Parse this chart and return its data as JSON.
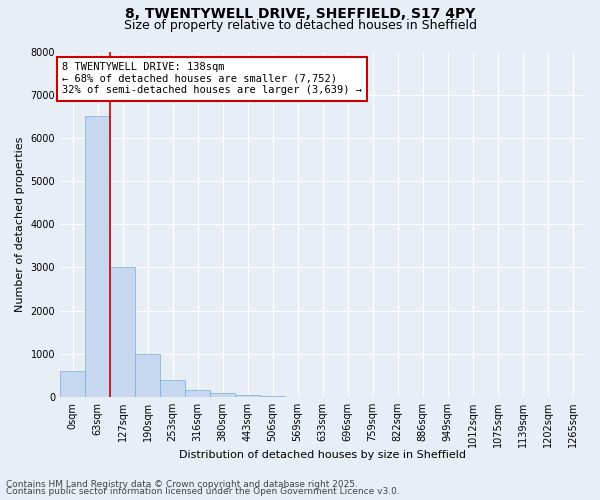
{
  "title_line1": "8, TWENTYWELL DRIVE, SHEFFIELD, S17 4PY",
  "title_line2": "Size of property relative to detached houses in Sheffield",
  "xlabel": "Distribution of detached houses by size in Sheffield",
  "ylabel": "Number of detached properties",
  "bin_labels": [
    "0sqm",
    "63sqm",
    "127sqm",
    "190sqm",
    "253sqm",
    "316sqm",
    "380sqm",
    "443sqm",
    "506sqm",
    "569sqm",
    "633sqm",
    "696sqm",
    "759sqm",
    "822sqm",
    "886sqm",
    "949sqm",
    "1012sqm",
    "1075sqm",
    "1139sqm",
    "1202sqm",
    "1265sqm"
  ],
  "bar_values": [
    600,
    6500,
    3000,
    1000,
    380,
    160,
    80,
    50,
    10,
    5,
    2,
    1,
    0,
    0,
    0,
    0,
    0,
    0,
    0,
    0,
    0
  ],
  "bar_color": "#c5d8ef",
  "bar_edge_color": "#7aadd4",
  "background_color": "#e8eef6",
  "grid_color": "#ffffff",
  "vline_x": 2.0,
  "vline_color": "#cc0000",
  "annotation_text": "8 TWENTYWELL DRIVE: 138sqm\n← 68% of detached houses are smaller (7,752)\n32% of semi-detached houses are larger (3,639) →",
  "annotation_box_color": "#ffffff",
  "annotation_box_edge": "#cc0000",
  "ylim": [
    0,
    8000
  ],
  "yticks": [
    0,
    1000,
    2000,
    3000,
    4000,
    5000,
    6000,
    7000,
    8000
  ],
  "footer_line1": "Contains HM Land Registry data © Crown copyright and database right 2025.",
  "footer_line2": "Contains public sector information licensed under the Open Government Licence v3.0.",
  "title_fontsize": 10,
  "subtitle_fontsize": 9,
  "axis_label_fontsize": 8,
  "tick_fontsize": 7,
  "annotation_fontsize": 7.5,
  "footer_fontsize": 6.5
}
